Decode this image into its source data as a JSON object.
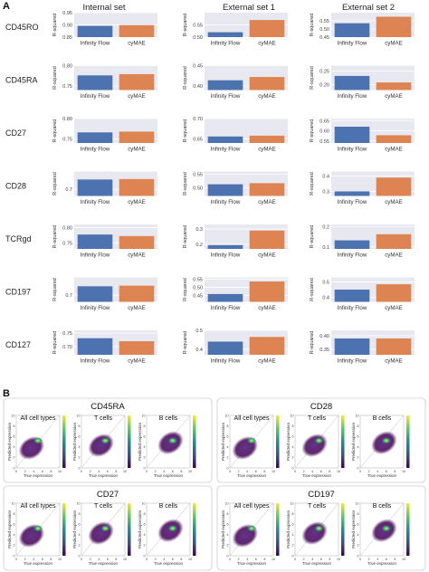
{
  "panel_a": {
    "letter": "A",
    "columns": [
      "Internal set",
      "External set 1",
      "External set 2"
    ],
    "markers": [
      "CD45RO",
      "CD45RA",
      "CD27",
      "CD28",
      "TCRgd",
      "CD197",
      "CD127"
    ],
    "ylabel": "R-squared",
    "colors": {
      "infinity_flow": "#4c72b0",
      "cymae": "#dd8452",
      "bg": "#e8e8f0"
    }
  },
  "panel_b": {
    "letter": "B",
    "xlabel": "True expression",
    "ylabel": "Predicted expression",
    "subplot_titles": [
      "All cell types",
      "T cells",
      "B cells"
    ],
    "groups": [
      "CD45RA",
      "CD28",
      "CD27",
      "CD197"
    ]
  },
  "chart_data": [
    {
      "type": "bar",
      "marker": "CD45RO",
      "set": "Internal set",
      "categories": [
        "Infinity Flow",
        "cyMAE"
      ],
      "values": [
        0.896,
        0.899
      ],
      "ylim": [
        0.85,
        0.95
      ],
      "yticks": [
        "0.85",
        "0.90",
        "0.95"
      ],
      "ylabel": "R-squared"
    },
    {
      "type": "bar",
      "marker": "CD45RO",
      "set": "External set 1",
      "categories": [
        "Infinity Flow",
        "cyMAE"
      ],
      "values": [
        0.52,
        0.57
      ],
      "ylim": [
        0.5,
        0.6
      ],
      "yticks": [
        "0.50",
        "0.55"
      ],
      "ylabel": "R-squared"
    },
    {
      "type": "bar",
      "marker": "CD45RO",
      "set": "External set 2",
      "categories": [
        "Infinity Flow",
        "cyMAE"
      ],
      "values": [
        0.535,
        0.575
      ],
      "ylim": [
        0.45,
        0.6
      ],
      "yticks": [
        "0.45",
        "0.50",
        "0.55"
      ],
      "ylabel": "R-squared"
    },
    {
      "type": "bar",
      "marker": "CD45RA",
      "set": "Internal set",
      "categories": [
        "Infinity Flow",
        "cyMAE"
      ],
      "values": [
        0.776,
        0.779
      ],
      "ylim": [
        0.74,
        0.8
      ],
      "yticks": [
        "0.75",
        "0.80"
      ],
      "ylabel": "R-squared"
    },
    {
      "type": "bar",
      "marker": "CD45RA",
      "set": "External set 1",
      "categories": [
        "Infinity Flow",
        "cyMAE"
      ],
      "values": [
        0.414,
        0.422
      ],
      "ylim": [
        0.39,
        0.45
      ],
      "yticks": [
        "0.40",
        "0.45"
      ],
      "ylabel": "R-squared"
    },
    {
      "type": "bar",
      "marker": "CD45RA",
      "set": "External set 2",
      "categories": [
        "Infinity Flow",
        "cyMAE"
      ],
      "values": [
        0.232,
        0.208
      ],
      "ylim": [
        0.18,
        0.27
      ],
      "yticks": [
        "0.20",
        "0.25"
      ],
      "ylabel": "R-squared"
    },
    {
      "type": "bar",
      "marker": "CD27",
      "set": "Internal set",
      "categories": [
        "Infinity Flow",
        "cyMAE"
      ],
      "values": [
        0.766,
        0.768
      ],
      "ylim": [
        0.74,
        0.8
      ],
      "yticks": [
        "0.75",
        "0.80"
      ],
      "ylabel": "R-squared"
    },
    {
      "type": "bar",
      "marker": "CD27",
      "set": "External set 1",
      "categories": [
        "Infinity Flow",
        "cyMAE"
      ],
      "values": [
        0.656,
        0.658
      ],
      "ylim": [
        0.64,
        0.7
      ],
      "yticks": [
        "0.65",
        "0.70"
      ],
      "ylabel": "R-squared"
    },
    {
      "type": "bar",
      "marker": "CD27",
      "set": "External set 2",
      "categories": [
        "Infinity Flow",
        "cyMAE"
      ],
      "values": [
        0.62,
        0.578
      ],
      "ylim": [
        0.54,
        0.66
      ],
      "yticks": [
        "0.55",
        "0.60",
        "0.65"
      ],
      "ylabel": "R-squared"
    },
    {
      "type": "bar",
      "marker": "CD28",
      "set": "Internal set",
      "categories": [
        "Infinity Flow",
        "cyMAE"
      ],
      "values": [
        0.744,
        0.746
      ],
      "ylim": [
        0.67,
        0.78
      ],
      "yticks": [
        "0.7"
      ],
      "ylabel": "R-squared"
    },
    {
      "type": "bar",
      "marker": "CD28",
      "set": "External set 1",
      "categories": [
        "Infinity Flow",
        "cyMAE"
      ],
      "values": [
        0.513,
        0.517
      ],
      "ylim": [
        0.47,
        0.56
      ],
      "yticks": [
        "0.50",
        "0.55"
      ],
      "ylabel": "R-squared"
    },
    {
      "type": "bar",
      "marker": "CD28",
      "set": "External set 2",
      "categories": [
        "Infinity Flow",
        "cyMAE"
      ],
      "values": [
        0.3,
        0.39
      ],
      "ylim": [
        0.27,
        0.43
      ],
      "yticks": [
        "0.3",
        "0.4"
      ],
      "ylabel": "R-squared"
    },
    {
      "type": "bar",
      "marker": "TCRgd",
      "set": "Internal set",
      "categories": [
        "Infinity Flow",
        "cyMAE"
      ],
      "values": [
        0.777,
        0.772
      ],
      "ylim": [
        0.73,
        0.81
      ],
      "yticks": [
        "0.75",
        "0.80"
      ],
      "ylabel": "R-squared"
    },
    {
      "type": "bar",
      "marker": "TCRgd",
      "set": "External set 1",
      "categories": [
        "Infinity Flow",
        "cyMAE"
      ],
      "values": [
        0.195,
        0.29
      ],
      "ylim": [
        0.17,
        0.33
      ],
      "yticks": [
        "0.2",
        "0.3"
      ],
      "ylabel": "R-squared"
    },
    {
      "type": "bar",
      "marker": "TCRgd",
      "set": "External set 2",
      "categories": [
        "Infinity Flow",
        "cyMAE"
      ],
      "values": [
        0.132,
        0.162
      ],
      "ylim": [
        0.09,
        0.21
      ],
      "yticks": [
        "0.1",
        "0.2"
      ],
      "ylabel": "R-squared"
    },
    {
      "type": "bar",
      "marker": "CD197",
      "set": "Internal set",
      "categories": [
        "Infinity Flow",
        "cyMAE"
      ],
      "values": [
        0.74,
        0.743
      ],
      "ylim": [
        0.67,
        0.78
      ],
      "yticks": [
        "0.7"
      ],
      "ylabel": "R-squared"
    },
    {
      "type": "bar",
      "marker": "CD197",
      "set": "External set 1",
      "categories": [
        "Infinity Flow",
        "cyMAE"
      ],
      "values": [
        0.458,
        0.535
      ],
      "ylim": [
        0.41,
        0.56
      ],
      "yticks": [
        "0.45",
        "0.50",
        "0.55"
      ],
      "ylabel": "R-squared"
    },
    {
      "type": "bar",
      "marker": "CD197",
      "set": "External set 2",
      "categories": [
        "Infinity Flow",
        "cyMAE"
      ],
      "values": [
        0.45,
        0.485
      ],
      "ylim": [
        0.37,
        0.53
      ],
      "yticks": [
        "0.4",
        "0.5"
      ],
      "ylabel": "R-squared"
    },
    {
      "type": "bar",
      "marker": "CD127",
      "set": "Internal set",
      "categories": [
        "Infinity Flow",
        "cyMAE"
      ],
      "values": [
        0.731,
        0.72
      ],
      "ylim": [
        0.67,
        0.76
      ],
      "yticks": [
        "0.70",
        "0.75"
      ],
      "ylabel": "R-squared"
    },
    {
      "type": "bar",
      "marker": "CD127",
      "set": "External set 1",
      "categories": [
        "Infinity Flow",
        "cyMAE"
      ],
      "values": [
        0.44,
        0.465
      ],
      "ylim": [
        0.37,
        0.5
      ],
      "yticks": [
        "0.4",
        "0.5"
      ],
      "ylabel": "R-squared"
    },
    {
      "type": "bar",
      "marker": "CD127",
      "set": "External set 2",
      "categories": [
        "Infinity Flow",
        "cyMAE"
      ],
      "values": [
        0.39,
        0.39
      ],
      "ylim": [
        0.33,
        0.42
      ],
      "yticks": [
        "0.35",
        "0.40"
      ],
      "ylabel": "R-squared"
    },
    {
      "type": "heatmap",
      "group": "CD45RA",
      "subplots": [
        "All cell types",
        "T cells",
        "B cells"
      ],
      "xlabel": "True expression",
      "ylabel": "Predicted expression",
      "x_ticks": [
        "0",
        "2",
        "4",
        "6",
        "8",
        "10"
      ],
      "y_ticks": [
        "0",
        "2",
        "4",
        "6",
        "8",
        "10"
      ]
    },
    {
      "type": "heatmap",
      "group": "CD28",
      "subplots": [
        "All cell types",
        "T cells",
        "B cells"
      ],
      "xlabel": "True expression",
      "ylabel": "Predicted expression",
      "x_ticks": [
        "0",
        "2",
        "4",
        "6",
        "8",
        "10"
      ],
      "y_ticks": [
        "0",
        "2",
        "4",
        "6",
        "8",
        "10"
      ]
    },
    {
      "type": "heatmap",
      "group": "CD27",
      "subplots": [
        "All cell types",
        "T cells",
        "B cells"
      ],
      "xlabel": "True expression",
      "ylabel": "Predicted expression",
      "x_ticks": [
        "0",
        "2",
        "4",
        "6",
        "8",
        "10"
      ],
      "y_ticks": [
        "0",
        "2",
        "4",
        "6",
        "8",
        "10"
      ]
    },
    {
      "type": "heatmap",
      "group": "CD197",
      "subplots": [
        "All cell types",
        "T cells",
        "B cells"
      ],
      "xlabel": "True expression",
      "ylabel": "Predicted expression",
      "x_ticks": [
        "0",
        "2",
        "4",
        "6",
        "8",
        "10"
      ],
      "y_ticks": [
        "0",
        "2",
        "4",
        "6",
        "8",
        "10"
      ]
    }
  ]
}
